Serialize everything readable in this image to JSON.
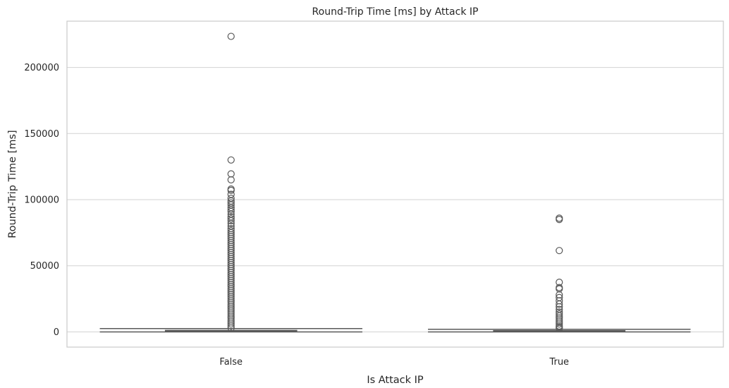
{
  "chart_data": {
    "type": "box",
    "title": "Round-Trip Time [ms] by Attack IP",
    "xlabel": "Is Attack IP",
    "ylabel": "Round-Trip Time [ms]",
    "ylim": [
      -11500,
      235000
    ],
    "yticks": [
      0,
      50000,
      100000,
      150000,
      200000
    ],
    "ytick_labels": [
      "0",
      "50000",
      "100000",
      "150000",
      "200000"
    ],
    "grid": true,
    "colors": {
      "box": "#3b75af",
      "line": "#595959",
      "grid": "#d3d3d3",
      "spine": "#cccccc"
    },
    "categories": [
      "False",
      "True"
    ],
    "boxes": [
      {
        "category": "False",
        "whisker_low": 0,
        "q1": 150,
        "median": 400,
        "q3": 1100,
        "whisker_high": 2500,
        "outliers": [
          223500,
          130000,
          119500,
          115000,
          108000,
          107000,
          104000,
          101000,
          99000,
          97500,
          96000,
          94000,
          92500,
          91000,
          89000,
          87000,
          85500,
          84000,
          82000,
          80000,
          78000,
          76500,
          75000,
          73500,
          72000,
          70500,
          69000,
          67500,
          66000,
          64500,
          63000,
          61500,
          60000,
          58500,
          57000,
          55500,
          54000,
          52500,
          51000,
          49500,
          48000,
          46500,
          45000,
          43500,
          42000,
          40500,
          39000,
          37500,
          36000,
          34500,
          33000,
          31500,
          30000,
          28500,
          27000,
          25500,
          24000,
          22500,
          21000,
          19500,
          18000,
          16500,
          15000,
          13500,
          12000,
          10500,
          9000,
          7500,
          6000,
          4500,
          3000
        ]
      },
      {
        "category": "True",
        "whisker_low": 0,
        "q1": 120,
        "median": 350,
        "q3": 950,
        "whisker_high": 2000,
        "outliers": [
          86000,
          85000,
          61500,
          37500,
          33500,
          32500,
          28000,
          26000,
          23500,
          21000,
          19000,
          17000,
          15000,
          13500,
          12000,
          10500,
          9000,
          7500,
          6000,
          4500,
          3500,
          2500
        ]
      }
    ]
  }
}
